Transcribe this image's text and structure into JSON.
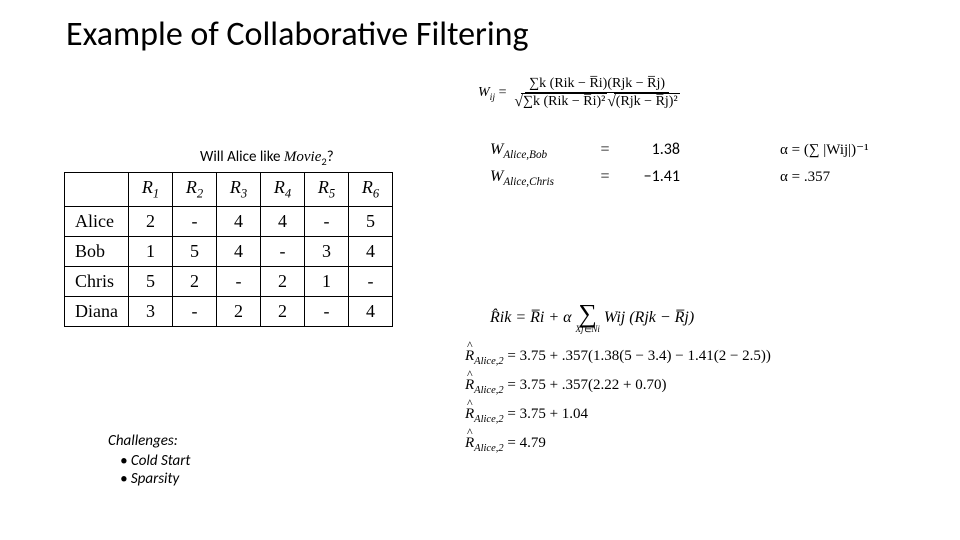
{
  "title": "Example of Collaborative Filtering",
  "question_prefix": "Will Alice like ",
  "question_movie": "Movie",
  "question_sub": "2",
  "question_suffix": "?",
  "table": {
    "headers": [
      "",
      "R1",
      "R2",
      "R3",
      "R4",
      "R5",
      "R6"
    ],
    "rows": [
      [
        "Alice",
        "2",
        "-",
        "4",
        "4",
        "-",
        "5"
      ],
      [
        "Bob",
        "1",
        "5",
        "4",
        "-",
        "3",
        "4"
      ],
      [
        "Chris",
        "5",
        "2",
        "-",
        "2",
        "1",
        "-"
      ],
      [
        "Diana",
        "3",
        "-",
        "2",
        "2",
        "-",
        "4"
      ]
    ]
  },
  "wij": {
    "lhs": "W",
    "lsub": "ij",
    "num": "∑k (Rik − R̅i)(Rjk − R̅j)",
    "den_a": "∑k (Rik − R̅i)²",
    "den_b": "(Rjk − R̅j)²"
  },
  "weights": [
    {
      "name": "W",
      "sub": "Alice,Bob",
      "eq": "=",
      "val": "1.38"
    },
    {
      "name": "W",
      "sub": "Alice,Chris",
      "eq": "=",
      "val": "−1.41"
    }
  ],
  "alpha": [
    {
      "text": "α = (∑ |Wij|)⁻¹"
    },
    {
      "text": "α = .357"
    }
  ],
  "pred": {
    "lhs": "R̂ik = R̅i + α",
    "sum_under": "Xj∈Ni",
    "rhs": "Wij (Rjk − R̅j)"
  },
  "calc": [
    "R̂_Alice,2 = 3.75 + .357(1.38(5 − 3.4) − 1.41(2 − 2.5))",
    "R̂_Alice,2 = 3.75 + .357(2.22 + 0.70)",
    "R̂_Alice,2 = 3.75 + 1.04",
    "R̂_Alice,2 = 4.79"
  ],
  "challenges": {
    "heading": "Challenges:",
    "items": [
      "Cold Start",
      "Sparsity"
    ]
  },
  "colors": {
    "text": "#000000",
    "bg": "#ffffff",
    "border": "#000000"
  }
}
